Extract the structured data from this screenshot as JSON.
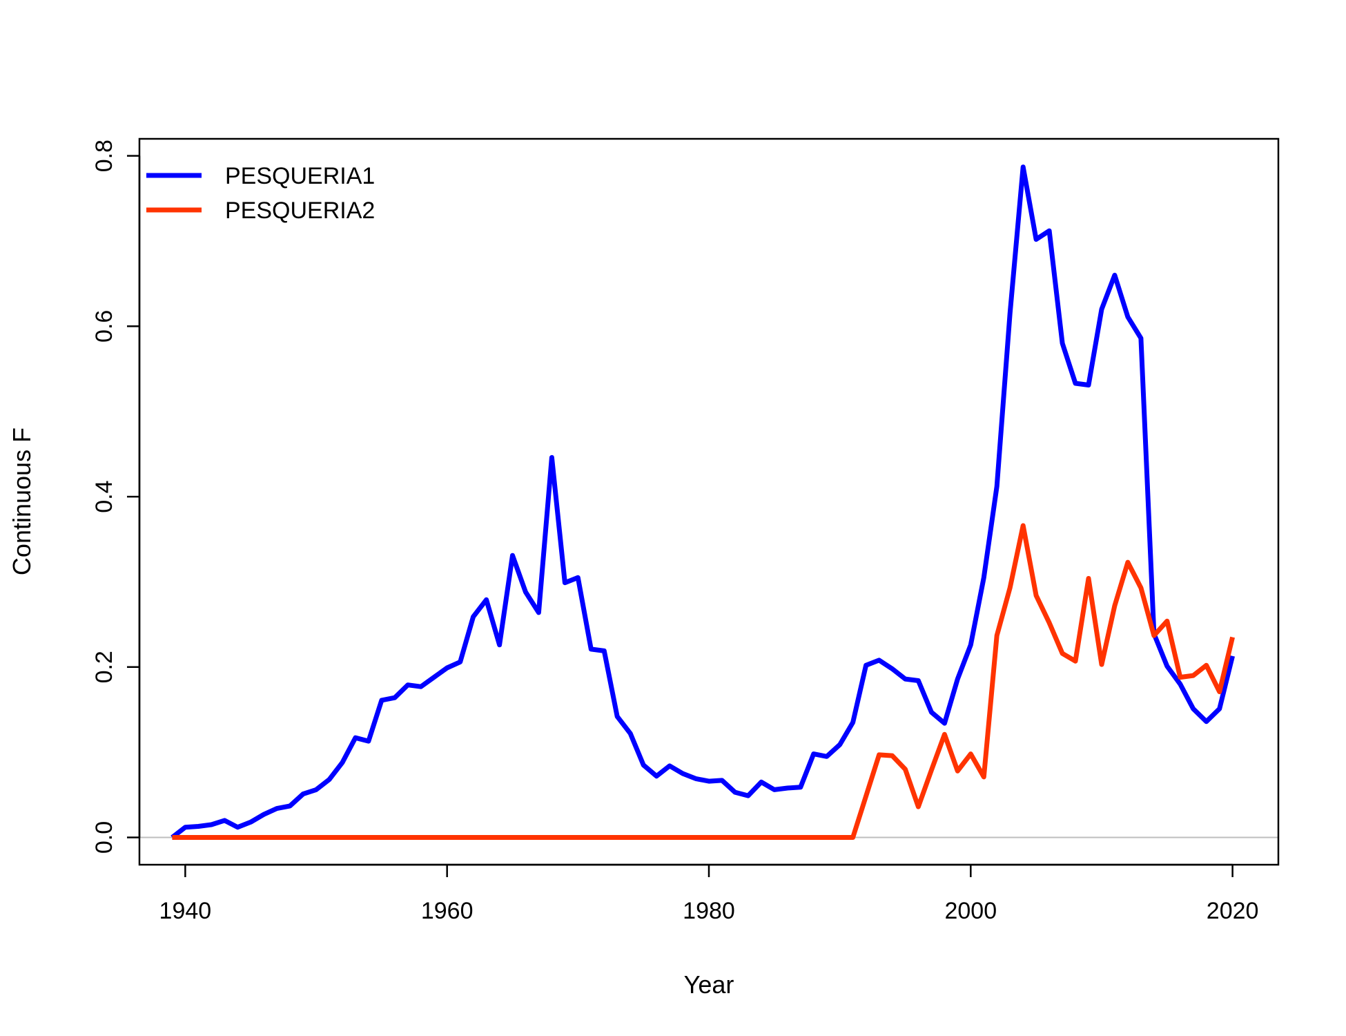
{
  "chart_data": {
    "type": "line",
    "xlabel": "Year",
    "ylabel": "Continuous F",
    "xlim": [
      1936.5,
      2023.5
    ],
    "ylim": [
      -0.032,
      0.82
    ],
    "x_ticks": [
      1940,
      1960,
      1980,
      2000,
      2020
    ],
    "y_ticks": [
      0.0,
      0.2,
      0.4,
      0.6,
      0.8
    ],
    "y_tick_labels": [
      "0.0",
      "0.2",
      "0.4",
      "0.6",
      "0.8"
    ],
    "reference_line": {
      "y": 0,
      "color": "#bebebe"
    },
    "legend_position": "top-left",
    "grid": false,
    "series": [
      {
        "name": "PESQUERIA1",
        "color": "#0000ff",
        "x": [
          1939,
          1940,
          1941,
          1942,
          1943,
          1944,
          1945,
          1946,
          1947,
          1948,
          1949,
          1950,
          1951,
          1952,
          1953,
          1954,
          1955,
          1956,
          1957,
          1958,
          1959,
          1960,
          1961,
          1962,
          1963,
          1964,
          1965,
          1966,
          1967,
          1968,
          1969,
          1970,
          1971,
          1972,
          1973,
          1974,
          1975,
          1976,
          1977,
          1978,
          1979,
          1980,
          1981,
          1982,
          1983,
          1984,
          1985,
          1986,
          1987,
          1988,
          1989,
          1990,
          1991,
          1992,
          1993,
          1994,
          1995,
          1996,
          1997,
          1998,
          1999,
          2000,
          2001,
          2002,
          2003,
          2004,
          2005,
          2006,
          2007,
          2008,
          2009,
          2010,
          2011,
          2012,
          2013,
          2014,
          2015,
          2016,
          2017,
          2018,
          2019,
          2020
        ],
        "y": [
          0.0,
          0.012,
          0.013,
          0.015,
          0.02,
          0.012,
          0.018,
          0.027,
          0.034,
          0.037,
          0.051,
          0.056,
          0.068,
          0.088,
          0.117,
          0.113,
          0.161,
          0.164,
          0.179,
          0.177,
          0.188,
          0.199,
          0.206,
          0.259,
          0.279,
          0.226,
          0.331,
          0.288,
          0.264,
          0.446,
          0.299,
          0.305,
          0.221,
          0.219,
          0.142,
          0.122,
          0.085,
          0.072,
          0.084,
          0.075,
          0.069,
          0.066,
          0.067,
          0.053,
          0.049,
          0.065,
          0.056,
          0.058,
          0.059,
          0.098,
          0.095,
          0.109,
          0.135,
          0.202,
          0.208,
          0.198,
          0.186,
          0.184,
          0.147,
          0.134,
          0.186,
          0.226,
          0.305,
          0.412,
          0.615,
          0.787,
          0.702,
          0.712,
          0.58,
          0.533,
          0.531,
          0.62,
          0.66,
          0.611,
          0.586,
          0.239,
          0.201,
          0.18,
          0.151,
          0.136,
          0.151,
          0.213
        ]
      },
      {
        "name": "PESQUERIA2",
        "color": "#ff3300",
        "x": [
          1939,
          1991,
          1993,
          1994,
          1995,
          1996,
          1997,
          1998,
          1999,
          2000,
          2001,
          2002,
          2003,
          2004,
          2005,
          2006,
          2007,
          2008,
          2009,
          2010,
          2011,
          2012,
          2013,
          2014,
          2015,
          2016,
          2017,
          2018,
          2019,
          2020
        ],
        "y": [
          0.0,
          0.0,
          0.097,
          0.096,
          0.08,
          0.036,
          0.079,
          0.121,
          0.078,
          0.098,
          0.071,
          0.237,
          0.293,
          0.366,
          0.284,
          0.252,
          0.216,
          0.207,
          0.304,
          0.203,
          0.272,
          0.323,
          0.293,
          0.237,
          0.254,
          0.188,
          0.19,
          0.202,
          0.171,
          0.235
        ]
      }
    ]
  }
}
